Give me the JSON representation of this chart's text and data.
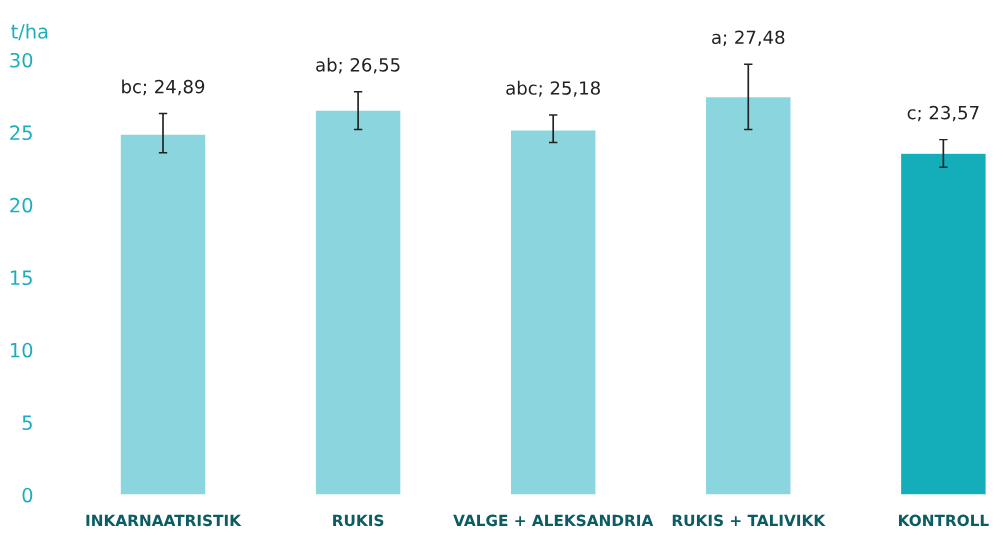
{
  "chart_data": {
    "type": "bar",
    "ylabel": "t/ha",
    "categories": [
      "INKARNAATRISTIK",
      "RUKIS",
      "VALGE + ALEKSANDRIA",
      "RUKIS + TALIVIKK",
      "KONTROLL"
    ],
    "values": [
      24.89,
      26.55,
      25.18,
      27.48,
      23.57
    ],
    "colors": [
      "#8bd6de",
      "#8bd6de",
      "#8bd6de",
      "#8bd6de",
      "#14aebb"
    ],
    "errors": [
      [
        23.6,
        26.3
      ],
      [
        25.2,
        27.8
      ],
      [
        24.3,
        26.2
      ],
      [
        25.2,
        29.7
      ],
      [
        22.6,
        24.5
      ]
    ],
    "value_labels": [
      "bc; 24,89",
      "ab; 26,55",
      "abc; 25,18",
      "a; 27,48",
      "c; 23,57"
    ],
    "ylim": [
      0,
      30
    ],
    "yticks": [
      0,
      5,
      10,
      15,
      20,
      25,
      30
    ],
    "grid": false,
    "legend": false
  }
}
